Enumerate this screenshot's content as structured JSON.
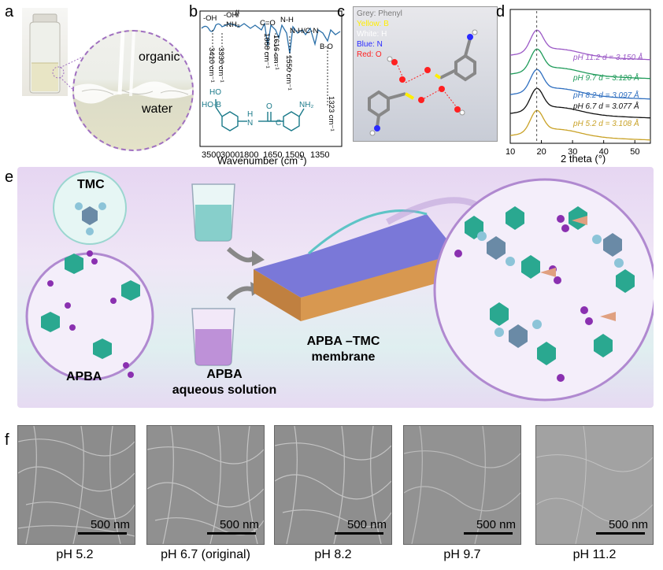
{
  "panels": {
    "a": {
      "label": "a",
      "organic_label": "organic",
      "water_label": "water"
    },
    "b": {
      "label": "b",
      "xlabel": "Wavenumber (cm",
      "xlabel_sup": "-1",
      "xlabel_end": ")",
      "xticks": [
        "3500",
        "3000",
        "1800",
        "1650",
        "1500",
        "1350"
      ],
      "peak_labels": [
        "3410 cm⁻¹",
        "3330 cm⁻¹",
        "1668 cm⁻¹",
        "1616 cm⁻¹",
        "1550 cm⁻¹",
        "1323 cm⁻¹"
      ],
      "group_labels": [
        "-OH",
        "-OH/",
        "-NH₂",
        "C=O",
        "N-H",
        "N-H/C-N",
        "B-O"
      ],
      "structure": {
        "boronic": "HO-B",
        "hydroxyl": "HO",
        "amide_h": "H",
        "amide_n": "N",
        "carbonyl_o": "O",
        "carbonyl_c": "C",
        "amine": "NH₂"
      }
    },
    "c": {
      "label": "c",
      "legend": [
        {
          "text": "Grey: Phenyl",
          "color": "#7a7a7a"
        },
        {
          "text": "Yellow: B",
          "color": "#ffee00"
        },
        {
          "text": "White: H",
          "color": "#ffffff"
        },
        {
          "text": "Blue: N",
          "color": "#2a2aff"
        },
        {
          "text": "Red: O",
          "color": "#ff2020"
        }
      ]
    },
    "d": {
      "label": "d",
      "xlabel": "2 theta (°)",
      "xticks": [
        "10",
        "20",
        "30",
        "40",
        "50"
      ],
      "series_labels": [
        {
          "text": "pH 11.2 d = 3.150 Å",
          "color": "#9b59c6"
        },
        {
          "text": "pH 9.7   d = 3.120 Å",
          "color": "#1f9b5a"
        },
        {
          "text": "pH 8.2   d = 3.097 Å",
          "color": "#2f6fc0"
        },
        {
          "text": "pH 6.7   d = 3.077 Å",
          "color": "#111111"
        },
        {
          "text": "pH 5.2   d = 3.108 Å",
          "color": "#c9a227"
        }
      ]
    },
    "e": {
      "label": "e",
      "tmc_label": "TMC",
      "apba_label": "APBA",
      "solution_label_1": "APBA",
      "solution_label_2": "aqueous solution",
      "membrane_label_1": "APBA –TMC",
      "membrane_label_2": "membrane"
    },
    "f": {
      "label": "f",
      "scale_text": "500 nm",
      "captions": [
        "pH 5.2",
        "pH 6.7 (original)",
        "pH 8.2",
        "pH 9.7",
        "pH 11.2"
      ]
    }
  },
  "chart_data": {
    "type": "line",
    "xlabel": "2 theta (°)",
    "ylabel": "",
    "xlim": [
      10,
      55
    ],
    "peak_x": 18.5,
    "series": [
      {
        "name": "pH 11.2 d = 3.150 Å",
        "color": "#9b59c6"
      },
      {
        "name": "pH 9.7 d = 3.120 Å",
        "color": "#1f9b5a"
      },
      {
        "name": "pH 8.2 d = 3.097 Å",
        "color": "#2f6fc0"
      },
      {
        "name": "pH 6.7 d = 3.077 Å",
        "color": "#111111"
      },
      {
        "name": "pH 5.2 d = 3.108 Å",
        "color": "#c9a227"
      }
    ]
  }
}
